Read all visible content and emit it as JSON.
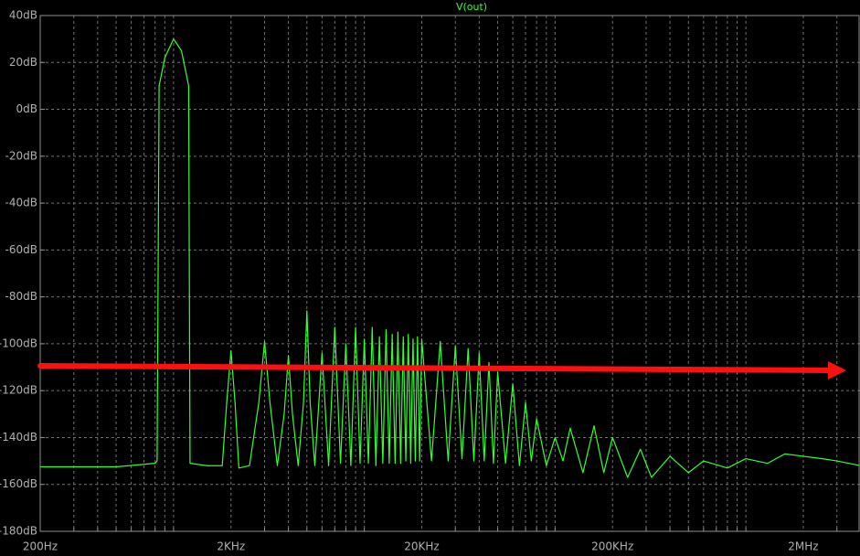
{
  "chart_data": {
    "type": "line",
    "title": "V(out)",
    "xscale": "log",
    "grid": true,
    "xlim": [
      200,
      4000000
    ],
    "ylim": [
      -180,
      40
    ],
    "xticks": [
      {
        "value": 200,
        "label": "200Hz"
      },
      {
        "value": 2000,
        "label": "2KHz"
      },
      {
        "value": 20000,
        "label": "20KHz"
      },
      {
        "value": 200000,
        "label": "200KHz"
      },
      {
        "value": 2000000,
        "label": "2MHz"
      }
    ],
    "xminorticks": [
      300,
      400,
      500,
      600,
      700,
      800,
      900,
      1000,
      3000,
      4000,
      5000,
      6000,
      7000,
      8000,
      9000,
      10000,
      30000,
      40000,
      50000,
      60000,
      70000,
      80000,
      90000,
      100000,
      300000,
      400000,
      500000,
      600000,
      700000,
      800000,
      900000,
      1000000,
      3000000,
      4000000
    ],
    "yticks": [
      {
        "value": 40,
        "label": "40dB"
      },
      {
        "value": 20,
        "label": "20dB"
      },
      {
        "value": 0,
        "label": "0dB"
      },
      {
        "value": -20,
        "label": "-20dB"
      },
      {
        "value": -40,
        "label": "-40dB"
      },
      {
        "value": -60,
        "label": "-60dB"
      },
      {
        "value": -80,
        "label": "-80dB"
      },
      {
        "value": -100,
        "label": "-100dB"
      },
      {
        "value": -120,
        "label": "-120dB"
      },
      {
        "value": -140,
        "label": "-140dB"
      },
      {
        "value": -160,
        "label": "-160dB"
      },
      {
        "value": -180,
        "label": "-180dB"
      }
    ],
    "series": [
      {
        "name": "V(out)",
        "color": "#33ff33",
        "x": [
          200,
          500,
          800,
          820,
          840,
          900,
          1000,
          1100,
          1200,
          1220,
          1500,
          1800,
          1900,
          2000,
          2100,
          2200,
          2500,
          2800,
          3000,
          3200,
          3500,
          3800,
          4000,
          4200,
          4500,
          4800,
          5000,
          5200,
          5500,
          6000,
          6500,
          7000,
          7500,
          8000,
          8500,
          9000,
          9500,
          10000,
          10500,
          11000,
          11500,
          12000,
          12500,
          13000,
          13500,
          14000,
          14500,
          15000,
          15500,
          16000,
          16500,
          17000,
          17500,
          18000,
          18500,
          19000,
          19500,
          20000,
          22500,
          25000,
          27500,
          30000,
          32500,
          35000,
          37500,
          40000,
          42500,
          45000,
          47500,
          50000,
          55000,
          60000,
          65000,
          70000,
          75000,
          80000,
          90000,
          100000,
          110000,
          120000,
          140000,
          160000,
          180000,
          200000,
          240000,
          280000,
          320000,
          400000,
          500000,
          600000,
          800000,
          1000000,
          1300000,
          1600000,
          2000000,
          2500000,
          3000000,
          4000000
        ],
        "values": [
          -152.5,
          -152.5,
          -151,
          -150,
          10,
          22,
          30,
          25,
          10,
          -151,
          -152,
          -152,
          -125,
          -103,
          -125,
          -153,
          -152,
          -125,
          -99,
          -125,
          -152,
          -130,
          -105,
          -130,
          -152,
          -125,
          -86,
          -125,
          -152,
          -104,
          -152,
          -93,
          -151,
          -100,
          -152,
          -93,
          -151,
          -98,
          -151,
          -93,
          -152,
          -97,
          -151,
          -94,
          -151,
          -96,
          -151,
          -95,
          -151,
          -97,
          -150,
          -96,
          -151,
          -98,
          -150,
          -97,
          -150,
          -98,
          -150,
          -99,
          -150,
          -101,
          -149,
          -102,
          -150,
          -104,
          -150,
          -108,
          -151,
          -112,
          -151,
          -117,
          -152,
          -125,
          -150,
          -132,
          -152,
          -140,
          -150,
          -136,
          -155,
          -135,
          -155,
          -140,
          -157,
          -145,
          -157,
          -148,
          -155,
          -150,
          -153,
          -149,
          -151,
          -147,
          -148,
          -149,
          -150,
          -152
        ]
      }
    ]
  }
}
